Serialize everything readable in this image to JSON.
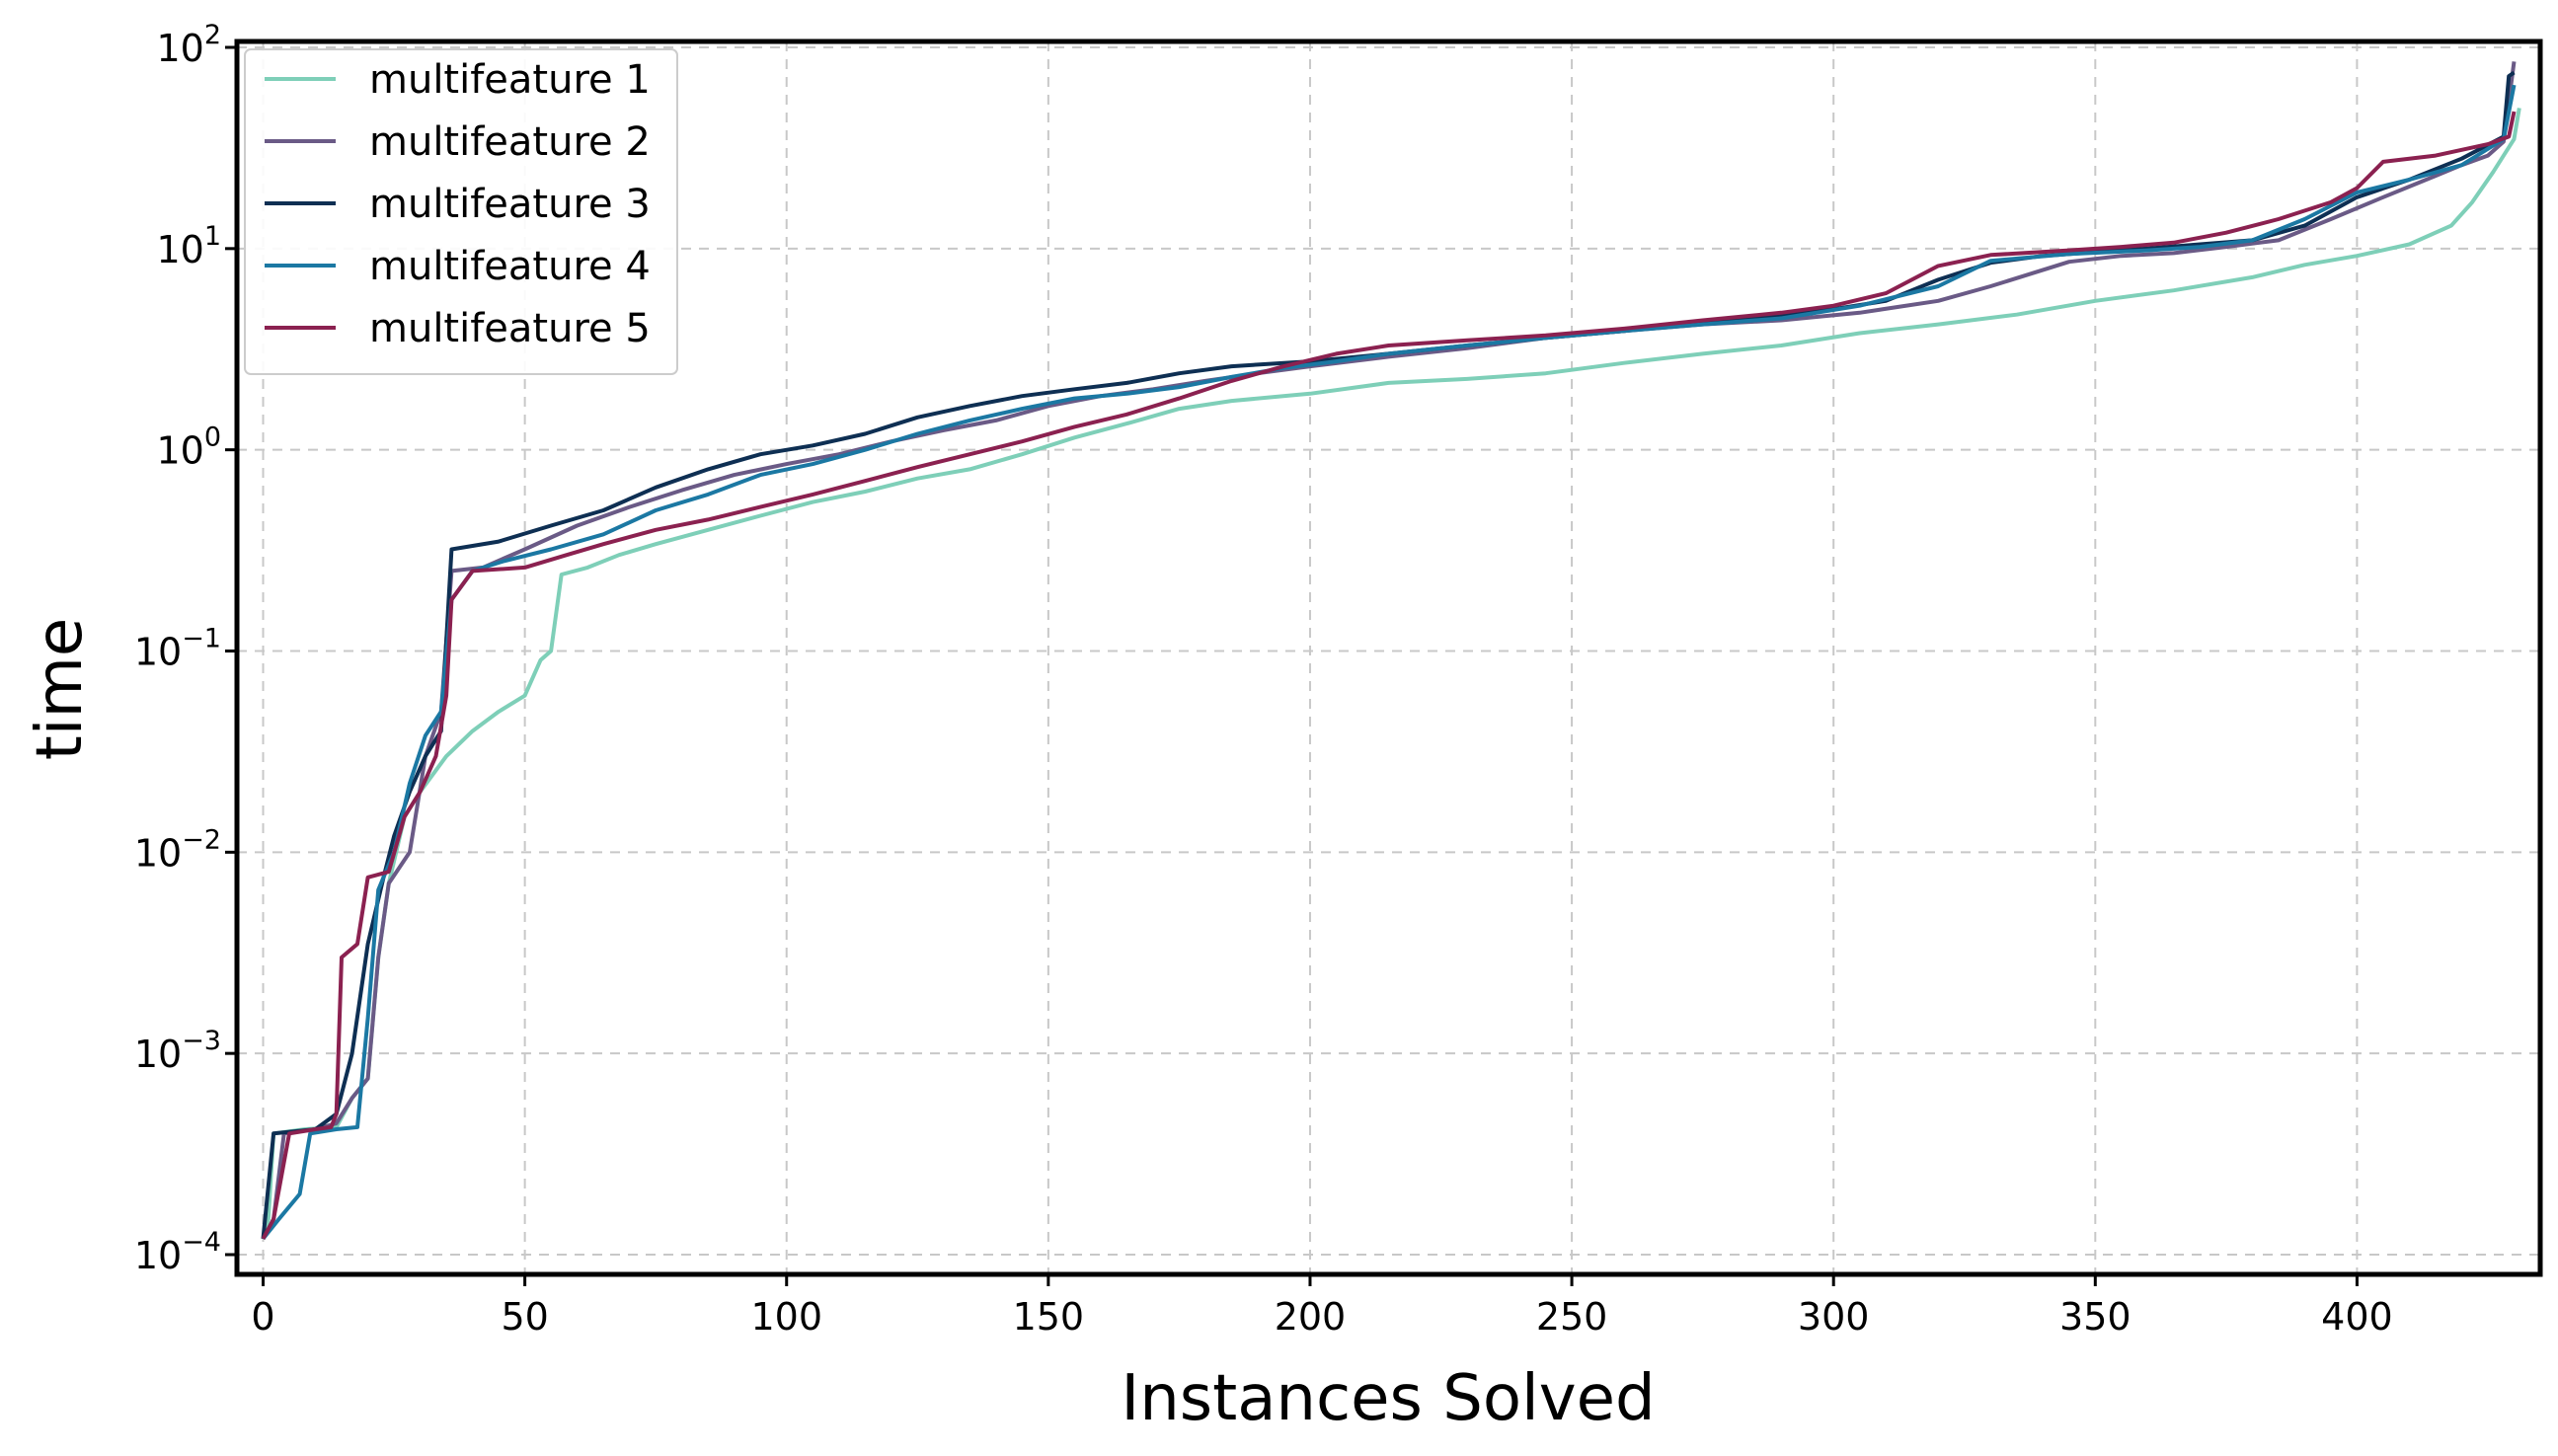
{
  "chart_data": {
    "type": "line",
    "xlabel": "Instances Solved",
    "ylabel": "time",
    "y_scale": "log",
    "xlim": [
      -5,
      435
    ],
    "ylim_exponents": [
      -4,
      2
    ],
    "grid": true,
    "legend_placement": "top-left",
    "x_ticks": [
      0,
      50,
      100,
      150,
      200,
      250,
      300,
      350,
      400
    ],
    "y_ticks": [
      {
        "base": "10",
        "exp": "−4",
        "value": 0.0001
      },
      {
        "base": "10",
        "exp": "−3",
        "value": 0.001
      },
      {
        "base": "10",
        "exp": "−2",
        "value": 0.01
      },
      {
        "base": "10",
        "exp": "−1",
        "value": 0.1
      },
      {
        "base": "10",
        "exp": "0",
        "value": 1
      },
      {
        "base": "10",
        "exp": "1",
        "value": 10
      },
      {
        "base": "10",
        "exp": "2",
        "value": 100
      }
    ],
    "series": [
      {
        "name": "multifeature 1",
        "color": "#7ecfb8",
        "points": [
          [
            0,
            0.00012
          ],
          [
            1,
            0.00015
          ],
          [
            2,
            0.0004
          ],
          [
            8,
            0.00042
          ],
          [
            14,
            0.00043
          ],
          [
            17,
            0.0006
          ],
          [
            20,
            0.00075
          ],
          [
            22,
            0.003
          ],
          [
            24,
            0.007
          ],
          [
            27,
            0.015
          ],
          [
            30,
            0.02
          ],
          [
            35,
            0.03
          ],
          [
            40,
            0.04
          ],
          [
            45,
            0.05
          ],
          [
            50,
            0.06
          ],
          [
            53,
            0.09
          ],
          [
            55,
            0.1
          ],
          [
            57,
            0.24
          ],
          [
            62,
            0.26
          ],
          [
            68,
            0.3
          ],
          [
            75,
            0.34
          ],
          [
            85,
            0.4
          ],
          [
            95,
            0.47
          ],
          [
            105,
            0.55
          ],
          [
            115,
            0.62
          ],
          [
            125,
            0.72
          ],
          [
            135,
            0.8
          ],
          [
            145,
            0.95
          ],
          [
            155,
            1.15
          ],
          [
            165,
            1.35
          ],
          [
            175,
            1.6
          ],
          [
            185,
            1.75
          ],
          [
            200,
            1.9
          ],
          [
            215,
            2.15
          ],
          [
            230,
            2.25
          ],
          [
            245,
            2.4
          ],
          [
            260,
            2.7
          ],
          [
            275,
            3.0
          ],
          [
            290,
            3.3
          ],
          [
            305,
            3.8
          ],
          [
            320,
            4.2
          ],
          [
            335,
            4.7
          ],
          [
            350,
            5.5
          ],
          [
            365,
            6.2
          ],
          [
            380,
            7.2
          ],
          [
            390,
            8.3
          ],
          [
            400,
            9.2
          ],
          [
            410,
            10.5
          ],
          [
            418,
            13
          ],
          [
            422,
            17
          ],
          [
            426,
            24
          ],
          [
            430,
            35
          ],
          [
            431,
            50
          ]
        ]
      },
      {
        "name": "multifeature 2",
        "color": "#6a5a86",
        "points": [
          [
            0,
            0.00012
          ],
          [
            2,
            0.00015
          ],
          [
            4,
            0.0004
          ],
          [
            10,
            0.00042
          ],
          [
            14,
            0.00045
          ],
          [
            17,
            0.0006
          ],
          [
            20,
            0.00075
          ],
          [
            22,
            0.003
          ],
          [
            24,
            0.007
          ],
          [
            28,
            0.01
          ],
          [
            31,
            0.03
          ],
          [
            34,
            0.05
          ],
          [
            36,
            0.25
          ],
          [
            42,
            0.26
          ],
          [
            50,
            0.32
          ],
          [
            60,
            0.42
          ],
          [
            70,
            0.52
          ],
          [
            80,
            0.63
          ],
          [
            90,
            0.75
          ],
          [
            100,
            0.85
          ],
          [
            110,
            0.95
          ],
          [
            120,
            1.1
          ],
          [
            130,
            1.25
          ],
          [
            140,
            1.4
          ],
          [
            150,
            1.65
          ],
          [
            160,
            1.85
          ],
          [
            170,
            2.0
          ],
          [
            180,
            2.2
          ],
          [
            190,
            2.4
          ],
          [
            200,
            2.6
          ],
          [
            215,
            2.9
          ],
          [
            230,
            3.2
          ],
          [
            245,
            3.6
          ],
          [
            260,
            3.9
          ],
          [
            275,
            4.2
          ],
          [
            290,
            4.4
          ],
          [
            305,
            4.8
          ],
          [
            320,
            5.5
          ],
          [
            330,
            6.5
          ],
          [
            345,
            8.6
          ],
          [
            355,
            9.2
          ],
          [
            365,
            9.5
          ],
          [
            375,
            10.2
          ],
          [
            385,
            11
          ],
          [
            395,
            14
          ],
          [
            405,
            18
          ],
          [
            415,
            23
          ],
          [
            420,
            26
          ],
          [
            425,
            29
          ],
          [
            428,
            34
          ],
          [
            430,
            85
          ]
        ]
      },
      {
        "name": "multifeature 3",
        "color": "#0e2f53",
        "points": [
          [
            0,
            0.00012
          ],
          [
            2,
            0.0004
          ],
          [
            10,
            0.00042
          ],
          [
            14,
            0.0005
          ],
          [
            17,
            0.001
          ],
          [
            20,
            0.0035
          ],
          [
            23,
            0.0075
          ],
          [
            25,
            0.012
          ],
          [
            28,
            0.02
          ],
          [
            31,
            0.03
          ],
          [
            34,
            0.04
          ],
          [
            36,
            0.32
          ],
          [
            45,
            0.35
          ],
          [
            55,
            0.42
          ],
          [
            65,
            0.5
          ],
          [
            75,
            0.65
          ],
          [
            85,
            0.8
          ],
          [
            95,
            0.95
          ],
          [
            105,
            1.05
          ],
          [
            115,
            1.2
          ],
          [
            125,
            1.45
          ],
          [
            135,
            1.65
          ],
          [
            145,
            1.85
          ],
          [
            155,
            2.0
          ],
          [
            165,
            2.15
          ],
          [
            175,
            2.4
          ],
          [
            185,
            2.6
          ],
          [
            200,
            2.75
          ],
          [
            215,
            3.0
          ],
          [
            230,
            3.3
          ],
          [
            245,
            3.6
          ],
          [
            260,
            3.9
          ],
          [
            275,
            4.3
          ],
          [
            290,
            4.7
          ],
          [
            300,
            5.0
          ],
          [
            310,
            5.5
          ],
          [
            320,
            7.0
          ],
          [
            330,
            8.5
          ],
          [
            340,
            9.2
          ],
          [
            350,
            9.6
          ],
          [
            360,
            10
          ],
          [
            370,
            10.5
          ],
          [
            380,
            11
          ],
          [
            390,
            13
          ],
          [
            400,
            18
          ],
          [
            410,
            22
          ],
          [
            420,
            28
          ],
          [
            428,
            36
          ],
          [
            429,
            72
          ],
          [
            430,
            75
          ]
        ]
      },
      {
        "name": "multifeature 4",
        "color": "#1b78a3",
        "points": [
          [
            0,
            0.00012
          ],
          [
            3,
            0.00015
          ],
          [
            7,
            0.0002
          ],
          [
            9,
            0.0004
          ],
          [
            14,
            0.00042
          ],
          [
            18,
            0.00043
          ],
          [
            20,
            0.0015
          ],
          [
            22,
            0.0065
          ],
          [
            25,
            0.01
          ],
          [
            28,
            0.022
          ],
          [
            31,
            0.038
          ],
          [
            34,
            0.05
          ],
          [
            36,
            0.18
          ],
          [
            40,
            0.25
          ],
          [
            46,
            0.28
          ],
          [
            55,
            0.32
          ],
          [
            65,
            0.38
          ],
          [
            75,
            0.5
          ],
          [
            85,
            0.6
          ],
          [
            95,
            0.75
          ],
          [
            105,
            0.85
          ],
          [
            115,
            1.0
          ],
          [
            125,
            1.2
          ],
          [
            135,
            1.4
          ],
          [
            145,
            1.6
          ],
          [
            155,
            1.8
          ],
          [
            165,
            1.9
          ],
          [
            175,
            2.05
          ],
          [
            185,
            2.3
          ],
          [
            195,
            2.55
          ],
          [
            205,
            2.75
          ],
          [
            215,
            3.0
          ],
          [
            230,
            3.3
          ],
          [
            245,
            3.6
          ],
          [
            260,
            3.9
          ],
          [
            275,
            4.2
          ],
          [
            290,
            4.5
          ],
          [
            305,
            5.2
          ],
          [
            320,
            6.5
          ],
          [
            330,
            8.7
          ],
          [
            345,
            9.4
          ],
          [
            360,
            9.8
          ],
          [
            370,
            10.2
          ],
          [
            380,
            11
          ],
          [
            390,
            14
          ],
          [
            400,
            19
          ],
          [
            410,
            22
          ],
          [
            420,
            26
          ],
          [
            428,
            35
          ],
          [
            430,
            65
          ]
        ]
      },
      {
        "name": "multifeature 5",
        "color": "#8b2150",
        "points": [
          [
            0,
            0.00012
          ],
          [
            2,
            0.00015
          ],
          [
            5,
            0.0004
          ],
          [
            10,
            0.00042
          ],
          [
            13,
            0.00043
          ],
          [
            14,
            0.0005
          ],
          [
            15,
            0.003
          ],
          [
            18,
            0.0035
          ],
          [
            20,
            0.0075
          ],
          [
            24,
            0.008
          ],
          [
            27,
            0.015
          ],
          [
            30,
            0.02
          ],
          [
            33,
            0.03
          ],
          [
            35,
            0.06
          ],
          [
            36,
            0.18
          ],
          [
            40,
            0.25
          ],
          [
            50,
            0.26
          ],
          [
            58,
            0.3
          ],
          [
            65,
            0.34
          ],
          [
            75,
            0.4
          ],
          [
            85,
            0.45
          ],
          [
            95,
            0.52
          ],
          [
            105,
            0.6
          ],
          [
            115,
            0.7
          ],
          [
            125,
            0.82
          ],
          [
            135,
            0.95
          ],
          [
            145,
            1.1
          ],
          [
            155,
            1.3
          ],
          [
            165,
            1.5
          ],
          [
            175,
            1.8
          ],
          [
            185,
            2.2
          ],
          [
            195,
            2.6
          ],
          [
            205,
            3.0
          ],
          [
            215,
            3.3
          ],
          [
            230,
            3.5
          ],
          [
            245,
            3.7
          ],
          [
            260,
            4.0
          ],
          [
            275,
            4.4
          ],
          [
            290,
            4.8
          ],
          [
            300,
            5.2
          ],
          [
            310,
            6.0
          ],
          [
            320,
            8.2
          ],
          [
            330,
            9.3
          ],
          [
            345,
            9.8
          ],
          [
            355,
            10.2
          ],
          [
            365,
            10.7
          ],
          [
            375,
            12
          ],
          [
            385,
            14
          ],
          [
            395,
            17
          ],
          [
            400,
            20
          ],
          [
            405,
            27
          ],
          [
            415,
            29
          ],
          [
            425,
            33
          ],
          [
            429,
            36
          ],
          [
            430,
            48
          ]
        ]
      }
    ]
  }
}
